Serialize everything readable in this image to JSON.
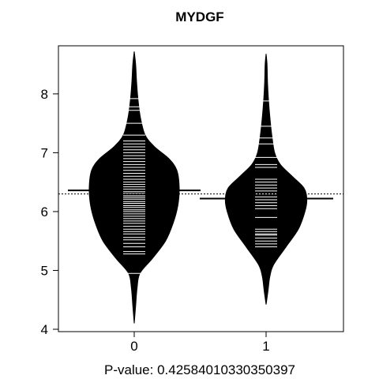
{
  "chart_data": {
    "type": "beanplot",
    "title": "MYDGF",
    "xlabel": "P-value: 0.42584010330350397",
    "ylabel": "",
    "ylim": [
      4,
      8.75
    ],
    "y_ticks": [
      4,
      5,
      6,
      7,
      8
    ],
    "categories": [
      "0",
      "1"
    ],
    "overall_mean": 6.3,
    "series": [
      {
        "category": "0",
        "mean": 6.36,
        "density_profile": [
          [
            4.1,
            0.0
          ],
          [
            4.4,
            0.03
          ],
          [
            4.7,
            0.06
          ],
          [
            4.95,
            0.12
          ],
          [
            5.2,
            0.38
          ],
          [
            5.5,
            0.66
          ],
          [
            5.8,
            0.82
          ],
          [
            6.1,
            0.92
          ],
          [
            6.4,
            0.95
          ],
          [
            6.7,
            0.9
          ],
          [
            6.9,
            0.73
          ],
          [
            7.1,
            0.43
          ],
          [
            7.3,
            0.23
          ],
          [
            7.6,
            0.13
          ],
          [
            7.9,
            0.08
          ],
          [
            8.2,
            0.05
          ],
          [
            8.5,
            0.03
          ],
          [
            8.72,
            0.0
          ]
        ],
        "observations": [
          4.95,
          5.28,
          5.32,
          5.4,
          5.46,
          5.52,
          5.56,
          5.62,
          5.66,
          5.7,
          5.75,
          5.8,
          5.84,
          5.88,
          5.92,
          5.96,
          6.0,
          6.03,
          6.07,
          6.1,
          6.14,
          6.17,
          6.21,
          6.24,
          6.27,
          6.31,
          6.34,
          6.38,
          6.42,
          6.46,
          6.5,
          6.55,
          6.6,
          6.65,
          6.7,
          6.75,
          6.8,
          6.85,
          6.9,
          6.95,
          7.0,
          7.05,
          7.1,
          7.15,
          7.2,
          7.3,
          7.5,
          7.72,
          7.78,
          7.92
        ]
      },
      {
        "category": "1",
        "mean": 6.22,
        "density_profile": [
          [
            4.42,
            0.0
          ],
          [
            4.65,
            0.04
          ],
          [
            4.9,
            0.08
          ],
          [
            5.1,
            0.16
          ],
          [
            5.4,
            0.42
          ],
          [
            5.7,
            0.68
          ],
          [
            6.0,
            0.82
          ],
          [
            6.2,
            0.86
          ],
          [
            6.4,
            0.8
          ],
          [
            6.6,
            0.55
          ],
          [
            6.8,
            0.3
          ],
          [
            7.0,
            0.18
          ],
          [
            7.3,
            0.12
          ],
          [
            7.6,
            0.08
          ],
          [
            7.9,
            0.05
          ],
          [
            8.2,
            0.03
          ],
          [
            8.5,
            0.02
          ],
          [
            8.68,
            0.0
          ]
        ],
        "observations": [
          5.4,
          5.45,
          5.5,
          5.55,
          5.6,
          5.62,
          5.66,
          5.7,
          5.9,
          6.05,
          6.1,
          6.15,
          6.2,
          6.25,
          6.3,
          6.35,
          6.4,
          6.45,
          6.5,
          6.55,
          6.75,
          6.8,
          6.92,
          7.15,
          7.25,
          7.45,
          7.88
        ]
      }
    ]
  }
}
